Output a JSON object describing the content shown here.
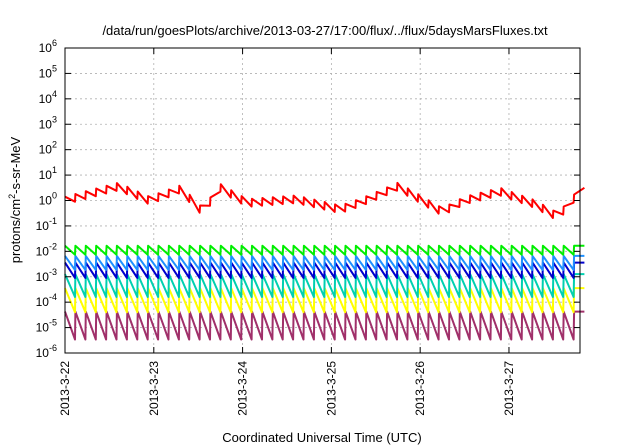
{
  "chart_data": {
    "type": "line",
    "title": "/data/run/goesPlots/archive/2013-03-27/17:00/flux/../flux/5daysMarsFluxes.txt",
    "xlabel": "Coordinated Universal Time (UTC)",
    "ylabel": "protons/cm²-s-sr-MeV",
    "ylabel_parts": [
      "protons/cm",
      "2",
      "-s-sr-MeV"
    ],
    "yscale": "log",
    "ylim_exp": [
      -6,
      6
    ],
    "y_tick_labels": [
      {
        "base": "10",
        "exp": "-6"
      },
      {
        "base": "10",
        "exp": "-5"
      },
      {
        "base": "10",
        "exp": "-4"
      },
      {
        "base": "10",
        "exp": "-3"
      },
      {
        "base": "10",
        "exp": "-2"
      },
      {
        "base": "10",
        "exp": "-1"
      },
      {
        "base": "10",
        "exp": "0"
      },
      {
        "base": "10",
        "exp": "1"
      },
      {
        "base": "10",
        "exp": "2"
      },
      {
        "base": "10",
        "exp": "3"
      },
      {
        "base": "10",
        "exp": "4"
      },
      {
        "base": "10",
        "exp": "5"
      },
      {
        "base": "10",
        "exp": "6"
      }
    ],
    "x_tick_labels": [
      "2013-3-22",
      "2013-3-23",
      "2013-3-24",
      "2013-3-25",
      "2013-3-26",
      "2013-3-27"
    ],
    "x_range_days": [
      0,
      5.8
    ],
    "grid": true,
    "series": [
      {
        "color": "#ff0000",
        "base": 1.0,
        "sawtooth_decades": 0.3,
        "period_days": 0.117,
        "trend": [
          [
            0,
            0.0
          ],
          [
            0.6,
            0.55
          ],
          [
            0.95,
            0.0
          ],
          [
            1.3,
            0.45
          ],
          [
            1.55,
            -0.45
          ],
          [
            1.75,
            0.5
          ],
          [
            2.05,
            -0.1
          ],
          [
            2.6,
            0.05
          ],
          [
            3.1,
            -0.35
          ],
          [
            3.35,
            -0.05
          ],
          [
            3.75,
            0.55
          ],
          [
            4.25,
            -0.45
          ],
          [
            4.5,
            0.0
          ],
          [
            4.9,
            0.35
          ],
          [
            5.3,
            -0.15
          ],
          [
            5.55,
            -0.65
          ],
          [
            5.8,
            0.35
          ]
        ]
      },
      {
        "color": "#00ee00",
        "base": 0.011,
        "sawtooth_decades": 0.35,
        "period_days": 0.117,
        "trend": [
          [
            0,
            0.0
          ],
          [
            5.8,
            0.0
          ]
        ]
      },
      {
        "color": "#1e90ff",
        "base": 0.0035,
        "sawtooth_decades": 0.55,
        "period_days": 0.117,
        "trend": [
          [
            0,
            0.0
          ],
          [
            5.8,
            0.0
          ]
        ]
      },
      {
        "color": "#0000cd",
        "base": 0.0018,
        "sawtooth_decades": 0.6,
        "period_days": 0.117,
        "trend": [
          [
            0,
            0.0
          ],
          [
            5.8,
            0.0
          ]
        ]
      },
      {
        "color": "#00d0b0",
        "base": 0.00045,
        "sawtooth_decades": 0.9,
        "period_days": 0.117,
        "trend": [
          [
            0,
            0.0
          ],
          [
            5.8,
            0.0
          ]
        ]
      },
      {
        "color": "#ffff00",
        "base": 0.00012,
        "sawtooth_decades": 0.95,
        "period_days": 0.117,
        "trend": [
          [
            0,
            0.0
          ],
          [
            5.8,
            0.0
          ]
        ]
      },
      {
        "color": "#a0306a",
        "base": 1.2e-05,
        "sawtooth_decades": 1.1,
        "period_days": 0.117,
        "trend": [
          [
            0,
            0.0
          ],
          [
            5.8,
            0.0
          ]
        ]
      }
    ]
  }
}
